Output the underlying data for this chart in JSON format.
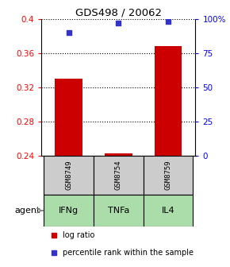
{
  "title": "GDS498 / 20062",
  "samples": [
    "GSM8749",
    "GSM8754",
    "GSM8759"
  ],
  "agents": [
    "IFNg",
    "TNFa",
    "IL4"
  ],
  "log_ratios": [
    0.33,
    0.243,
    0.368
  ],
  "percentile_ranks": [
    90,
    97,
    98
  ],
  "ylim_left": [
    0.24,
    0.4
  ],
  "ylim_right": [
    0,
    100
  ],
  "yticks_left": [
    0.24,
    0.28,
    0.32,
    0.36,
    0.4
  ],
  "yticks_right": [
    0,
    25,
    50,
    75,
    100
  ],
  "ytick_labels_right": [
    "0",
    "25",
    "50",
    "75",
    "100%"
  ],
  "bar_color": "#cc0000",
  "dot_color": "#3333cc",
  "sample_box_color": "#cccccc",
  "agent_box_color": "#aaddaa",
  "bar_width": 0.55,
  "baseline": 0.24,
  "x_positions": [
    0,
    1,
    2
  ]
}
